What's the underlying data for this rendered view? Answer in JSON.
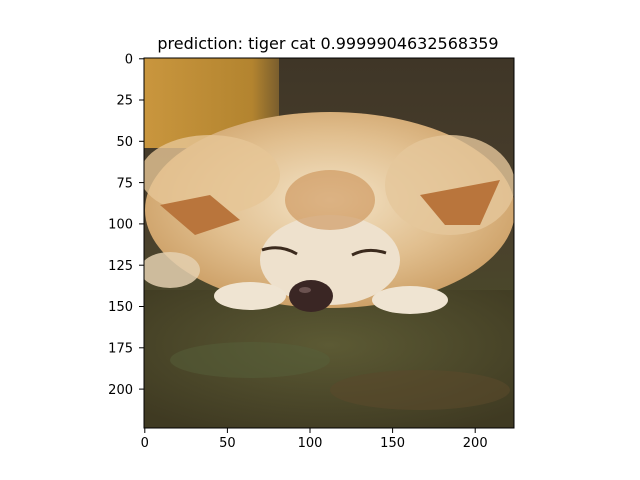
{
  "chart_data": {
    "type": "image",
    "title": "prediction: tiger cat 0.9999904632568359",
    "xlabel": "",
    "ylabel": "",
    "xlim": [
      0,
      224
    ],
    "ylim": [
      224,
      0
    ],
    "xticks": [
      0,
      50,
      100,
      150,
      200
    ],
    "yticks": [
      0,
      25,
      50,
      75,
      100,
      125,
      150,
      175,
      200
    ],
    "grid": false,
    "image_content": "photo of a sleeping fluffy cream-and-orange dog lying on grass",
    "prediction": {
      "label": "tiger cat",
      "confidence": 0.9999904632568359
    }
  }
}
